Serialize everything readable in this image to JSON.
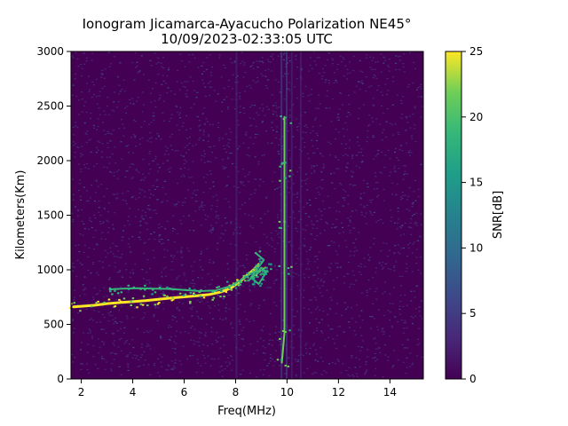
{
  "chart_data": {
    "type": "heatmap",
    "title_line1": "Ionogram Jicamarca-Ayacucho Polarization NE45°",
    "title_line2": "10/09/2023-02:33:05 UTC",
    "xlabel": "Freq(MHz)",
    "ylabel": "Kilometers(Km)",
    "colorbar_label": "SNR[dB]",
    "colormap": "viridis",
    "xlim": [
      1.6,
      15.3
    ],
    "ylim": [
      0,
      3000
    ],
    "clim": [
      0,
      25
    ],
    "xticks": [
      2,
      4,
      6,
      8,
      10,
      12,
      14
    ],
    "xtick_labels": [
      "2",
      "4",
      "6",
      "8",
      "10",
      "12",
      "14"
    ],
    "yticks": [
      0,
      500,
      1000,
      1500,
      2000,
      2500,
      3000
    ],
    "ytick_labels": [
      "0",
      "500",
      "1000",
      "1500",
      "2000",
      "2500",
      "3000"
    ],
    "cticks": [
      0,
      5,
      10,
      15,
      20,
      25
    ],
    "ctick_labels": [
      "0",
      "5",
      "10",
      "15",
      "20",
      "25"
    ],
    "traces": [
      {
        "trace": "main-echo",
        "snr_db": 25,
        "points": [
          [
            1.7,
            660
          ],
          [
            2.5,
            675
          ],
          [
            3.0,
            690
          ],
          [
            3.5,
            700
          ],
          [
            4.0,
            708
          ],
          [
            4.5,
            718
          ],
          [
            5.0,
            730
          ],
          [
            5.5,
            742
          ],
          [
            6.0,
            752
          ],
          [
            6.5,
            762
          ],
          [
            7.0,
            775
          ],
          [
            7.4,
            795
          ],
          [
            7.8,
            830
          ],
          [
            8.1,
            880
          ],
          [
            8.4,
            940
          ],
          [
            8.7,
            1000
          ],
          [
            8.9,
            1050
          ]
        ]
      },
      {
        "trace": "upper-echo",
        "snr_db": 20,
        "points": [
          [
            3.1,
            820
          ],
          [
            3.6,
            828
          ],
          [
            4.2,
            832
          ],
          [
            4.8,
            828
          ],
          [
            5.4,
            825
          ],
          [
            6.0,
            815
          ],
          [
            6.6,
            805
          ],
          [
            7.2,
            810
          ],
          [
            7.8,
            850
          ],
          [
            8.3,
            920
          ],
          [
            8.7,
            980
          ],
          [
            9.1,
            1000
          ]
        ]
      },
      {
        "trace": "spread-region",
        "snr_db": 18,
        "points": [
          [
            8.5,
            900
          ],
          [
            8.8,
            960
          ],
          [
            9.0,
            1020
          ],
          [
            9.2,
            980
          ],
          [
            8.9,
            870
          ],
          [
            8.6,
            930
          ],
          [
            9.1,
            1090
          ],
          [
            8.8,
            1150
          ]
        ]
      },
      {
        "trace": "vertical-interference",
        "snr_db": 22,
        "points": [
          [
            9.9,
            2400
          ],
          [
            9.9,
            2000
          ],
          [
            9.9,
            1870
          ],
          [
            9.9,
            1400
          ],
          [
            9.9,
            1000
          ],
          [
            9.9,
            420
          ],
          [
            9.8,
            150
          ]
        ]
      }
    ]
  }
}
